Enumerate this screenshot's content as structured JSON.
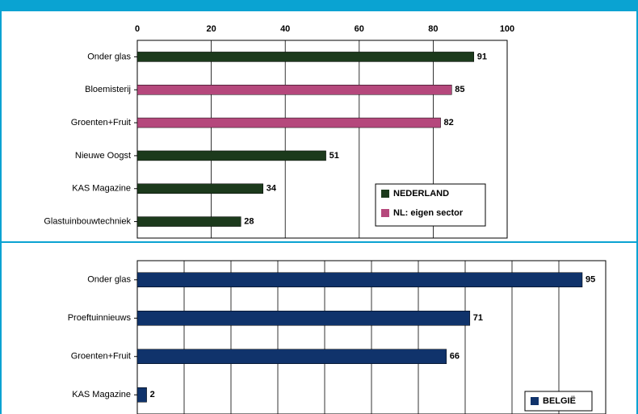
{
  "chart_data": [
    {
      "type": "bar",
      "orientation": "horizontal",
      "categories": [
        "Onder glas",
        "Bloemisterij",
        "Groenten+Fruit",
        "Nieuwe Oogst",
        "KAS Magazine",
        "Glastuinbouwtechniek"
      ],
      "series": [
        {
          "name": "NEDERLAND",
          "color": "#1c3a1c",
          "values": [
            91,
            null,
            null,
            51,
            34,
            28
          ]
        },
        {
          "name": "NL: eigen sector",
          "color": "#b5487c",
          "values": [
            null,
            85,
            82,
            null,
            null,
            null
          ]
        }
      ],
      "xlim": [
        0,
        100
      ],
      "xticks": [
        0,
        20,
        40,
        60,
        80,
        100
      ],
      "tick_labels": true,
      "grid": true,
      "legend": "lower right"
    },
    {
      "type": "bar",
      "orientation": "horizontal",
      "categories": [
        "Onder glas",
        "Proeftuinnieuws",
        "Groenten+Fruit",
        "KAS Magazine"
      ],
      "series": [
        {
          "name": "BELGIË",
          "color": "#10336b",
          "values": [
            95,
            71,
            66,
            2
          ]
        }
      ],
      "xlim": [
        0,
        100
      ],
      "xticks": [
        0,
        10,
        20,
        30,
        40,
        50,
        60,
        70,
        80,
        90,
        100
      ],
      "tick_labels": false,
      "grid": true,
      "legend": "lower right"
    }
  ]
}
